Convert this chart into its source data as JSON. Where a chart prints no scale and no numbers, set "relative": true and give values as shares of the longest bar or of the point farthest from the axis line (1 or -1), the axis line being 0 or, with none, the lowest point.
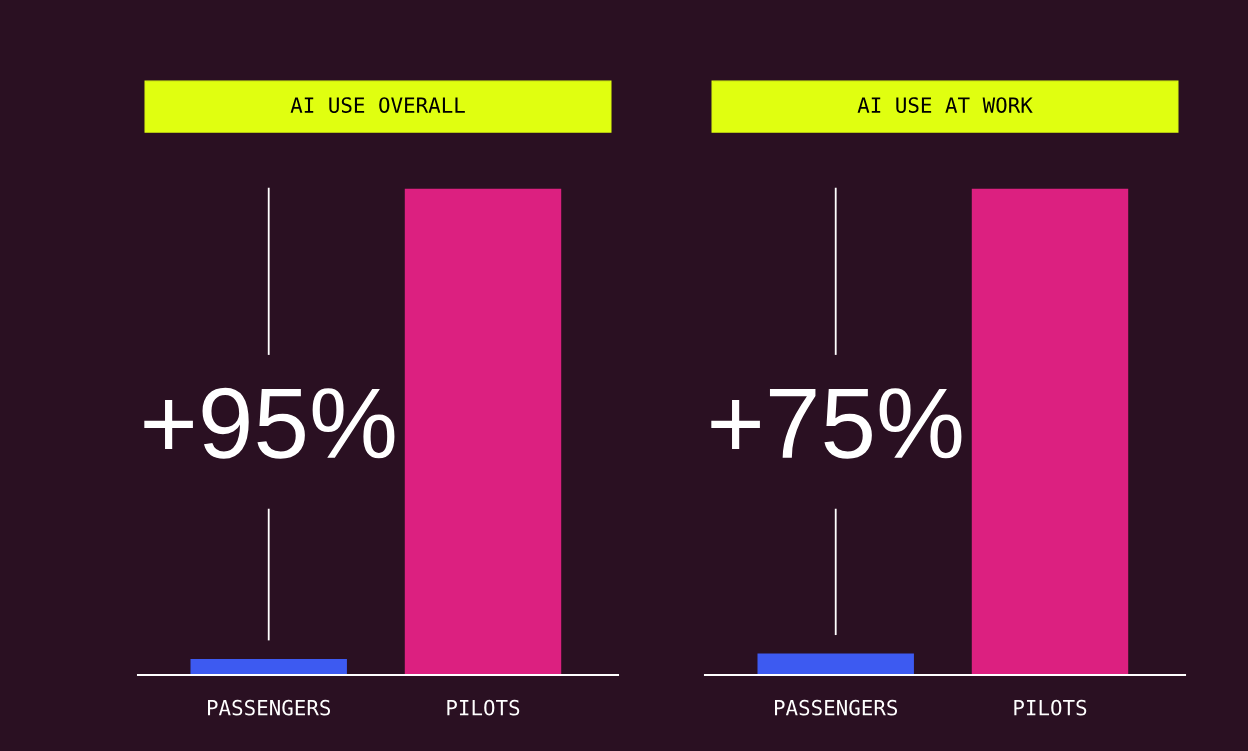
{
  "chart_data": [
    {
      "type": "bar",
      "title": "AI USE OVERALL",
      "categories": [
        "PASSENGERS",
        "PILOTS"
      ],
      "values": [
        0.033,
        1
      ],
      "colors": [
        "#3d5af1",
        "#dc2080"
      ],
      "relative": true,
      "annotations": [
        "+95%"
      ],
      "grid": false,
      "legend": false
    },
    {
      "type": "bar",
      "title": "AI USE AT WORK",
      "categories": [
        "PASSENGERS",
        "PILOTS"
      ],
      "values": [
        0.044,
        1
      ],
      "colors": [
        "#3d5af1",
        "#dc2080"
      ],
      "relative": true,
      "annotations": [
        "+75%"
      ],
      "grid": false,
      "legend": false
    }
  ]
}
